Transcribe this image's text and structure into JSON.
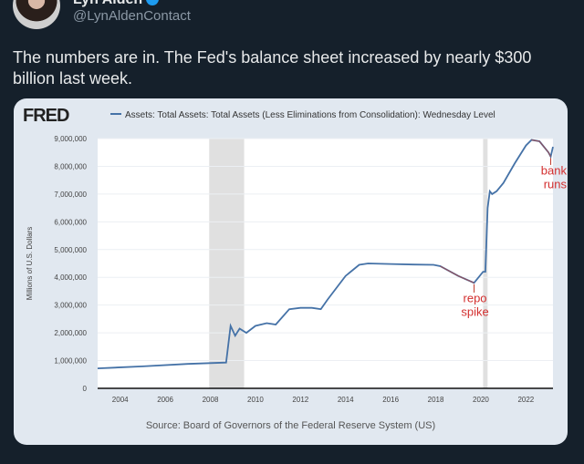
{
  "tweet": {
    "author": "Lyn Alden",
    "handle": "@LynAldenContact",
    "text": "The numbers are in. The Fed's balance sheet increased by nearly $300 billion last week."
  },
  "chart_data": {
    "type": "line",
    "brand": "FRED",
    "legend": "Assets: Total Assets: Total Assets (Less Eliminations from Consolidation): Wednesday Level",
    "ylabel": "Millions of U.S. Dollars",
    "source": "Source: Board of Governors of the Federal Reserve System (US)",
    "xlim": [
      2003,
      2023.2
    ],
    "ylim": [
      0,
      9000000
    ],
    "yticks": [
      0,
      1000000,
      2000000,
      3000000,
      4000000,
      5000000,
      6000000,
      7000000,
      8000000,
      9000000
    ],
    "ytick_labels": [
      "0",
      "1,000,000",
      "2,000,000",
      "3,000,000",
      "4,000,000",
      "5,000,000",
      "6,000,000",
      "7,000,000",
      "8,000,000",
      "9,000,000"
    ],
    "xticks": [
      "2004",
      "2006",
      "2008",
      "2010",
      "2012",
      "2014",
      "2016",
      "2018",
      "2020",
      "2022"
    ],
    "recessions": [
      [
        2007.95,
        2009.5
      ],
      [
        2020.1,
        2020.3
      ]
    ],
    "grid": true,
    "series_color": "#4572a7",
    "highlight_color": "#c0392b",
    "series": [
      {
        "x": [
          2003,
          2005,
          2007,
          2008.7,
          2008.9,
          2009.1,
          2009.3,
          2009.6,
          2010,
          2010.5,
          2010.9,
          2011.5,
          2012,
          2012.5,
          2012.9,
          2013.2,
          2014,
          2014.6,
          2015,
          2016,
          2017,
          2017.9,
          2018.2,
          2019,
          2019.7,
          2019.9,
          2020.1,
          2020.2,
          2020.3,
          2020.4,
          2020.5,
          2020.7,
          2021,
          2021.5,
          2022,
          2022.25,
          2022.6,
          2023.0,
          2023.1,
          2023.2
        ],
        "y": [
          720000,
          790000,
          880000,
          930000,
          2250000,
          1900000,
          2150000,
          2000000,
          2250000,
          2350000,
          2300000,
          2850000,
          2900000,
          2900000,
          2850000,
          3200000,
          4050000,
          4450000,
          4500000,
          4480000,
          4460000,
          4450000,
          4400000,
          4050000,
          3800000,
          4000000,
          4200000,
          4200000,
          6500000,
          7100000,
          7000000,
          7100000,
          7400000,
          8100000,
          8750000,
          8950000,
          8900000,
          8500000,
          8350000,
          8700000
        ]
      }
    ],
    "annotations": [
      {
        "text_lines": [
          "repo",
          "spike"
        ],
        "x": 2019.7
      },
      {
        "text_lines": [
          "bank",
          "runs"
        ],
        "x": 2023.1
      }
    ]
  }
}
